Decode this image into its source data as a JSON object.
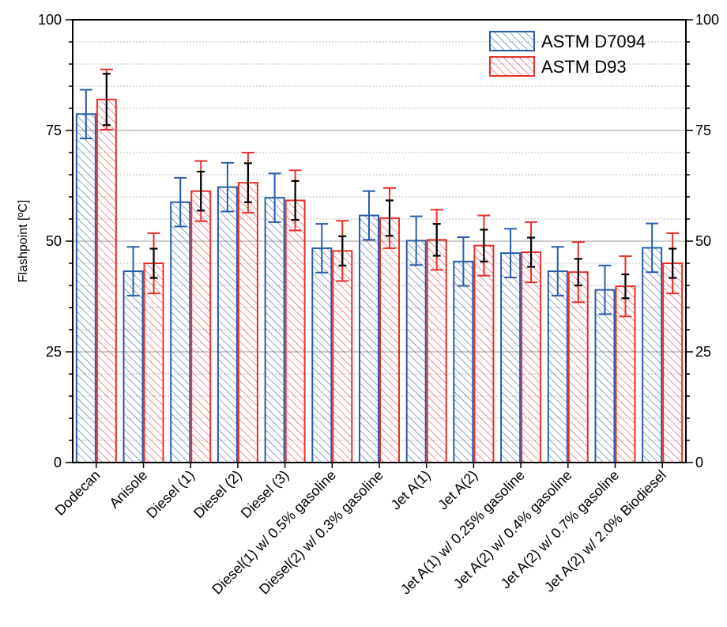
{
  "chart_data": {
    "type": "bar",
    "ylabel": "Flashpoint [ºC]",
    "ylim": [
      0,
      100
    ],
    "yticks": [
      0,
      25,
      50,
      75,
      100
    ],
    "ytick_labels": [
      "0",
      "25",
      "50",
      "75",
      "100"
    ],
    "right_axis_mirrored": true,
    "grid": "horizontal major solid, minor dotted every 5",
    "legend_position": "top-right",
    "categories": [
      "Dodecan",
      "Anisole",
      "Diesel (1)",
      "Diesel (2)",
      "Diesel (3)",
      "Diesel(1) w/ 0.5% gasoline",
      "Diesel(2) w/ 0.3% gasoline",
      "Jet A(1)",
      "Jet A(2)",
      "Jet A(1) w/ 0.25% gasoline",
      "Jet A(2) w/ 0.4% gasoline",
      "Jet A(2) w/ 0.7% gasoline",
      "Jet A(2) w/ 2.0% Biodiesel"
    ],
    "series": [
      {
        "name": "ASTM D7094",
        "color": "#2a5caa",
        "values": [
          78.7,
          43.2,
          58.8,
          62.2,
          59.8,
          48.4,
          55.8,
          50.1,
          45.4,
          47.3,
          43.2,
          39.0,
          48.5
        ],
        "error": [
          5.5,
          5.5,
          5.5,
          5.5,
          5.5,
          5.5,
          5.5,
          5.5,
          5.5,
          5.5,
          5.5,
          5.5,
          5.5
        ]
      },
      {
        "name": "ASTM D93",
        "color": "#e8302a",
        "values": [
          82.0,
          45.0,
          61.3,
          63.2,
          59.2,
          47.8,
          55.2,
          50.3,
          49.0,
          47.5,
          43.0,
          39.8,
          45.0
        ],
        "error": [
          6.8,
          6.8,
          6.8,
          6.8,
          6.8,
          6.8,
          6.8,
          6.8,
          6.8,
          6.8,
          6.8,
          6.8,
          6.8
        ],
        "inner_error": [
          5.8,
          3.3,
          4.4,
          4.4,
          4.4,
          3.3,
          4.0,
          3.6,
          3.6,
          3.3,
          3.0,
          2.7,
          3.3
        ],
        "inner_error_color": "#000000"
      }
    ]
  }
}
